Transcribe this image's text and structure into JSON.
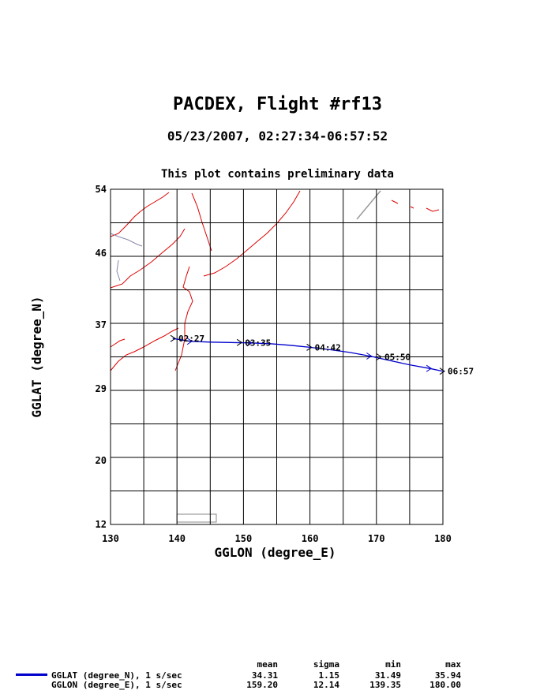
{
  "title": "PACDEX, Flight #rf13",
  "subtitle": "05/23/2007, 02:27:34-06:57:52",
  "note": "This plot contains preliminary data",
  "chart_data": {
    "type": "line",
    "xlabel": "GGLON (degree_E)",
    "ylabel": "GGLAT (degree_N)",
    "xlim": [
      130,
      180
    ],
    "ylim": [
      12,
      54
    ],
    "x_ticks": [
      "130",
      "140",
      "150",
      "160",
      "170",
      "180"
    ],
    "y_ticks": [
      "12",
      "20",
      "29",
      "37",
      "46",
      "54"
    ],
    "grid": true,
    "series": [
      {
        "name": "GGLAT (degree_N), 1 s/sec",
        "color": "#0000cc",
        "x": [
          139.35,
          140.5,
          142,
          145,
          148,
          151,
          154,
          157,
          160,
          163,
          166,
          169,
          172,
          175,
          178,
          180
        ],
        "y": [
          35.3,
          35.15,
          34.95,
          34.85,
          34.8,
          34.75,
          34.65,
          34.45,
          34.2,
          33.9,
          33.55,
          33.1,
          32.55,
          32.0,
          31.55,
          31.2
        ]
      }
    ],
    "annotations": [
      {
        "label": "02:27",
        "x": 139.5,
        "y": 35.3
      },
      {
        "label": "03:35",
        "x": 149.5,
        "y": 34.8
      },
      {
        "label": "04:42",
        "x": 160.0,
        "y": 34.2
      },
      {
        "label": "05:50",
        "x": 170.5,
        "y": 33.0
      },
      {
        "label": "06:57",
        "x": 180.0,
        "y": 31.2
      }
    ],
    "coastline_color": "#dd0000"
  },
  "stats": {
    "headers": [
      "mean",
      "sigma",
      "min",
      "max"
    ],
    "rows": [
      {
        "name": "GGLAT (degree_N), 1 s/sec",
        "mean": "34.31",
        "sigma": "1.15",
        "min": "31.49",
        "max": "35.94"
      },
      {
        "name": "GGLON (degree_E), 1 s/sec",
        "mean": "159.20",
        "sigma": "12.14",
        "min": "139.35",
        "max": "180.00"
      }
    ]
  }
}
